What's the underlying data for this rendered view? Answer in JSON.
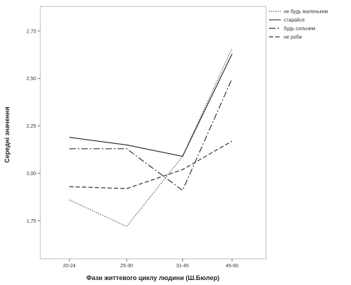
{
  "chart_data": {
    "type": "line",
    "xlabel": "Фази життевого циклу людини (Ш.Бюлер)",
    "ylabel": "Середні значення",
    "categories": [
      "20-24",
      "25-30",
      "31-45",
      "46-60"
    ],
    "ylim": [
      1.55,
      2.88
    ],
    "yticks": [
      1.75,
      2.0,
      2.25,
      2.5,
      2.75
    ],
    "ytick_labels": [
      "1,75",
      "2,00",
      "2,25",
      "2,50",
      "2,75"
    ],
    "grid": false,
    "legend_position": "top-right",
    "series": [
      {
        "name": "не будь маленьким",
        "values": [
          1.86,
          1.72,
          2.09,
          2.66
        ],
        "dash": "dotted",
        "color": "#555555"
      },
      {
        "name": "старайся",
        "values": [
          2.19,
          2.15,
          2.09,
          2.63
        ],
        "dash": "solid",
        "color": "#222222"
      },
      {
        "name": "будь сильним",
        "values": [
          2.13,
          2.13,
          1.91,
          2.5
        ],
        "dash": "dashdot",
        "color": "#333333"
      },
      {
        "name": "не роби",
        "values": [
          1.93,
          1.92,
          2.02,
          2.17
        ],
        "dash": "dashed",
        "color": "#333333"
      }
    ]
  }
}
